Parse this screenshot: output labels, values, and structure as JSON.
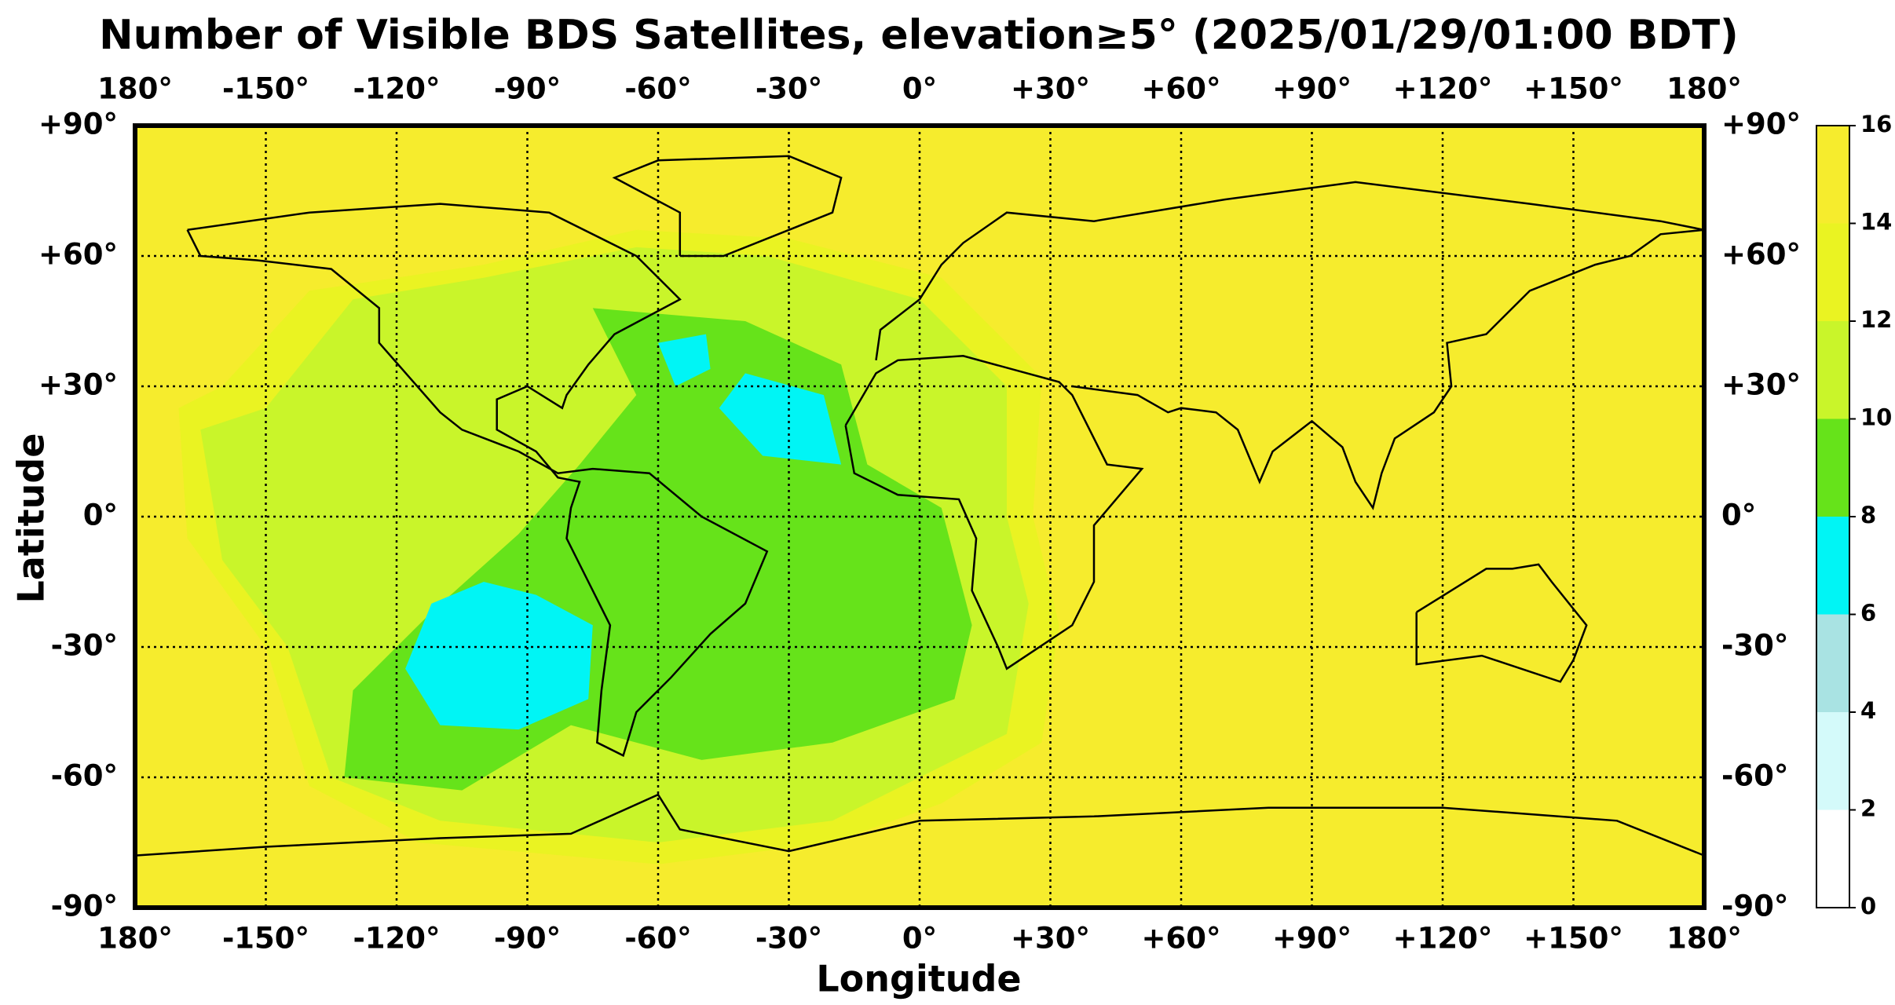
{
  "chart_data": {
    "type": "map",
    "title": "Number of Visible BDS Satellites, elevation≥5° (2025/01/29/01:00 BDT)",
    "xlabel": "Longitude",
    "ylabel": "Latitude",
    "xlim": [
      -180,
      180
    ],
    "ylim": [
      -90,
      90
    ],
    "xticks": [
      {
        "value": -180,
        "label": "180°"
      },
      {
        "value": -150,
        "label": "-150°"
      },
      {
        "value": -120,
        "label": "-120°"
      },
      {
        "value": -90,
        "label": "-90°"
      },
      {
        "value": -60,
        "label": "-60°"
      },
      {
        "value": -30,
        "label": "-30°"
      },
      {
        "value": 0,
        "label": "0°"
      },
      {
        "value": 30,
        "label": "+30°"
      },
      {
        "value": 60,
        "label": "+60°"
      },
      {
        "value": 90,
        "label": "+90°"
      },
      {
        "value": 120,
        "label": "+120°"
      },
      {
        "value": 150,
        "label": "+150°"
      },
      {
        "value": 180,
        "label": "180°"
      }
    ],
    "yticks": [
      {
        "value": -90,
        "label": "-90°"
      },
      {
        "value": -60,
        "label": "-60°"
      },
      {
        "value": -30,
        "label": "-30°"
      },
      {
        "value": 0,
        "label": "0°"
      },
      {
        "value": 30,
        "label": "+30°"
      },
      {
        "value": 60,
        "label": "+60°"
      },
      {
        "value": 90,
        "label": "+90°"
      }
    ],
    "grid": true,
    "colorbar": {
      "ticks": [
        0,
        2,
        4,
        6,
        8,
        10,
        12,
        14,
        16
      ],
      "colors": [
        "#ffffff",
        "#d4fafa",
        "#a9e3e3",
        "#00f5f5",
        "#66e31a",
        "#c9f52a",
        "#eaf322",
        "#f6ec2d"
      ]
    }
  }
}
